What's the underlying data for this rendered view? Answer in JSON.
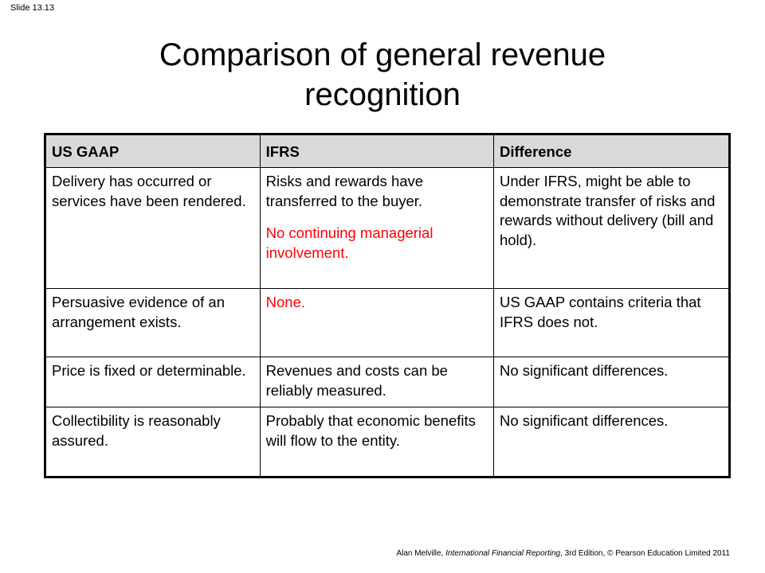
{
  "slide": {
    "number_label": "Slide 13.13",
    "title_line1": "Comparison of general revenue",
    "title_line2": "recognition"
  },
  "table": {
    "headers": [
      "US GAAP",
      "IFRS",
      "Difference"
    ],
    "rows": [
      {
        "us_gaap": "Delivery has occurred or services have been rendered.",
        "ifrs": "Risks and rewards have transferred to the buyer.",
        "ifrs_extra": "No continuing managerial involvement.",
        "difference": "Under IFRS, might be able to demonstrate transfer of risks and rewards without delivery (bill and hold)."
      },
      {
        "us_gaap": "Persuasive evidence of an arrangement exists.",
        "ifrs": "None.",
        "difference": "US GAAP contains criteria that IFRS does not."
      },
      {
        "us_gaap": "Price is fixed or determinable.",
        "ifrs": "Revenues and costs can be reliably measured.",
        "difference": "No significant differences."
      },
      {
        "us_gaap": "Collectibility is reasonably assured.",
        "ifrs": "Probably that economic benefits will flow to the entity.",
        "difference": "No significant differences."
      }
    ],
    "highlight_color": "#ff0000",
    "header_bg": "#d9d9d9"
  },
  "footer": {
    "author": "Alan Melville, ",
    "book_title": "International Financial Reporting",
    "edition": ", 3rd Edition, © Pearson Education Limited 2011"
  }
}
